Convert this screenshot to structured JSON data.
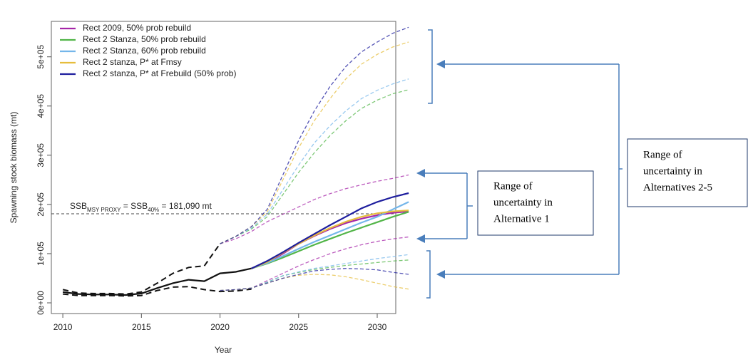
{
  "chart_data": {
    "type": "line",
    "x_label": "Year",
    "y_label": "Spawning stock biomass (mt)",
    "xlim": [
      2009.27,
      2031.18
    ],
    "ylim": [
      -21700,
      572000
    ],
    "xticks": [
      2010,
      2015,
      2020,
      2025,
      2030
    ],
    "yticks": [
      {
        "value": 0,
        "label": "0e+00"
      },
      {
        "value": 100000,
        "label": "1e+05"
      },
      {
        "value": 200000,
        "label": "2e+05"
      },
      {
        "value": 300000,
        "label": "3e+05"
      },
      {
        "value": 400000,
        "label": "4e+05"
      },
      {
        "value": 500000,
        "label": "5e+05"
      }
    ],
    "legend": "top-left",
    "x": [
      2010,
      2011,
      2012,
      2013,
      2014,
      2015,
      2016,
      2017,
      2018,
      2019,
      2020,
      2021,
      2022,
      2023,
      2024,
      2025,
      2026,
      2027,
      2028,
      2029,
      2030,
      2031,
      2032
    ],
    "series": [
      {
        "color": "#111111",
        "values": [
          22000,
          18000,
          17000,
          17000,
          16000,
          19000,
          30000,
          40000,
          47000,
          44000,
          60000,
          63000,
          70000,
          null,
          null,
          null,
          null,
          null,
          null,
          null,
          null,
          null,
          null
        ],
        "upper": [
          27000,
          20000,
          19000,
          19000,
          18000,
          22000,
          40000,
          60000,
          72000,
          75000,
          120000,
          null,
          null,
          null,
          null,
          null,
          null,
          null,
          null,
          null,
          null,
          null,
          null
        ],
        "lower": [
          18000,
          15000,
          15000,
          15000,
          14000,
          15000,
          25000,
          32000,
          33000,
          27000,
          23000,
          24000,
          28000,
          null,
          null,
          null,
          null,
          null,
          null,
          null,
          null,
          null,
          null
        ]
      },
      {
        "name": "Rect 2009, 50% prob rebuild",
        "color": "#a526a8",
        "values": [
          null,
          null,
          null,
          null,
          null,
          null,
          null,
          null,
          null,
          null,
          null,
          null,
          70000,
          82000,
          100000,
          120000,
          136000,
          150000,
          162000,
          171000,
          178000,
          183000,
          186000
        ],
        "upper": [
          null,
          null,
          null,
          null,
          null,
          null,
          null,
          null,
          null,
          null,
          120000,
          130000,
          145000,
          165000,
          180000,
          195000,
          210000,
          222000,
          232000,
          240000,
          247000,
          253000,
          260000
        ],
        "lower": [
          null,
          null,
          null,
          null,
          null,
          null,
          null,
          null,
          null,
          null,
          25000,
          27000,
          30000,
          45000,
          60000,
          75000,
          88000,
          100000,
          110000,
          118000,
          125000,
          130000,
          134000
        ]
      },
      {
        "name": "Rect 2 Stanza, 50% prob rebuild",
        "color": "#52b548",
        "values": [
          null,
          null,
          null,
          null,
          null,
          null,
          null,
          null,
          null,
          null,
          null,
          null,
          70000,
          80000,
          92000,
          105000,
          118000,
          130000,
          142000,
          153000,
          164000,
          175000,
          185000
        ],
        "upper": [
          null,
          null,
          null,
          null,
          null,
          null,
          null,
          null,
          null,
          null,
          120000,
          135000,
          150000,
          175000,
          220000,
          265000,
          305000,
          340000,
          370000,
          395000,
          412000,
          425000,
          433000
        ],
        "lower": [
          null,
          null,
          null,
          null,
          null,
          null,
          null,
          null,
          null,
          null,
          25000,
          27000,
          30000,
          42000,
          55000,
          62000,
          68000,
          72000,
          76000,
          79000,
          82000,
          85000,
          87000
        ]
      },
      {
        "name": "Rect 2 Stanza, 60% prob rebuild",
        "color": "#74b6ea",
        "values": [
          null,
          null,
          null,
          null,
          null,
          null,
          null,
          null,
          null,
          null,
          null,
          null,
          70000,
          81000,
          95000,
          110000,
          124000,
          137000,
          150000,
          163000,
          175000,
          190000,
          205000
        ],
        "upper": [
          null,
          null,
          null,
          null,
          null,
          null,
          null,
          null,
          null,
          null,
          120000,
          135000,
          152000,
          180000,
          230000,
          280000,
          325000,
          360000,
          390000,
          415000,
          432000,
          445000,
          455000
        ],
        "lower": [
          null,
          null,
          null,
          null,
          null,
          null,
          null,
          null,
          null,
          null,
          25000,
          27000,
          30000,
          42000,
          55000,
          63000,
          70000,
          75000,
          80000,
          85000,
          90000,
          94000,
          98000
        ]
      },
      {
        "name": "Rect 2 stanza, P* at Fmsy",
        "color": "#e6bd3c",
        "values": [
          null,
          null,
          null,
          null,
          null,
          null,
          null,
          null,
          null,
          null,
          null,
          null,
          70000,
          83000,
          102000,
          120000,
          137000,
          152000,
          165000,
          175000,
          182000,
          186000,
          188000
        ],
        "upper": [
          null,
          null,
          null,
          null,
          null,
          null,
          null,
          null,
          null,
          null,
          120000,
          135000,
          155000,
          185000,
          250000,
          315000,
          370000,
          415000,
          455000,
          485000,
          505000,
          520000,
          530000
        ],
        "lower": [
          null,
          null,
          null,
          null,
          null,
          null,
          null,
          null,
          null,
          null,
          25000,
          27000,
          30000,
          40000,
          50000,
          56000,
          58000,
          57000,
          53000,
          47000,
          40000,
          33000,
          28000
        ]
      },
      {
        "name": "Rect 2 stanza, P* at Frebuild (50% prob)",
        "color": "#1e1e9e",
        "values": [
          null,
          null,
          null,
          null,
          null,
          null,
          null,
          null,
          null,
          null,
          null,
          null,
          70000,
          85000,
          103000,
          122000,
          140000,
          158000,
          175000,
          192000,
          205000,
          215000,
          223000
        ],
        "upper": [
          null,
          null,
          null,
          null,
          null,
          null,
          null,
          null,
          null,
          null,
          120000,
          135000,
          155000,
          190000,
          260000,
          330000,
          390000,
          440000,
          480000,
          510000,
          530000,
          548000,
          560000
        ],
        "lower": [
          null,
          null,
          null,
          null,
          null,
          null,
          null,
          null,
          null,
          null,
          25000,
          27000,
          30000,
          40000,
          50000,
          58000,
          65000,
          68000,
          70000,
          69000,
          67000,
          62000,
          58000
        ]
      }
    ],
    "reference_line": {
      "value": 181090,
      "label": [
        {
          "text": "SSB"
        },
        {
          "text": "MSY PROXY",
          "sub": true
        },
        {
          "text": " = SSB"
        },
        {
          "text": "40%",
          "sub": true
        },
        {
          "text": " = 181,090 mt"
        }
      ]
    },
    "annotations": [
      {
        "lines": [
          "Range of",
          "uncertainty in",
          "Alternative 1"
        ]
      },
      {
        "lines": [
          "Range of",
          "uncertainty in",
          "Alternatives 2-5"
        ]
      }
    ]
  }
}
